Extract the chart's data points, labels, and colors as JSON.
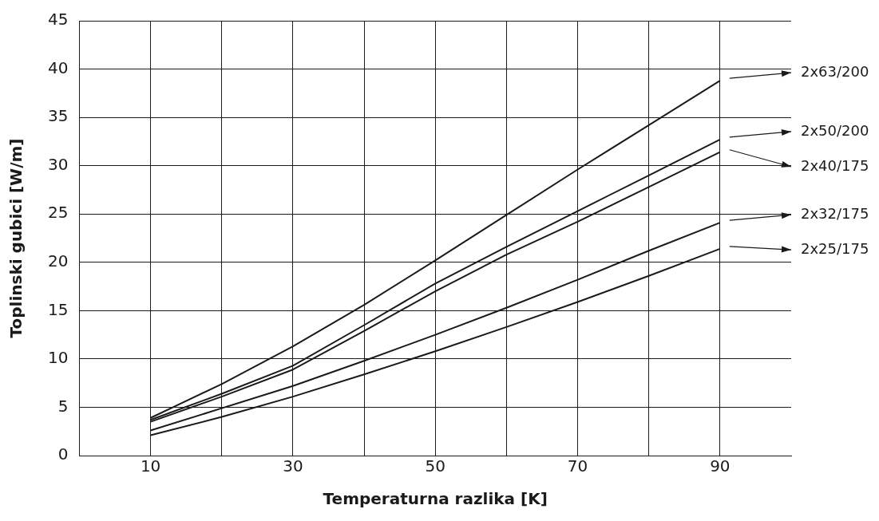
{
  "chart_data": {
    "type": "line",
    "xlabel": "Temperaturna razlika [K]",
    "ylabel": "Toplinski gubici [W/m]",
    "x": [
      10,
      20,
      30,
      40,
      50,
      60,
      70,
      80,
      90
    ],
    "xlim": [
      0,
      100
    ],
    "xticks": [
      10,
      {
        "value": 20,
        "label": null
      },
      30,
      {
        "value": 40,
        "label": null
      },
      50,
      {
        "value": 60,
        "label": null
      },
      70,
      {
        "value": 80,
        "label": null
      },
      90
    ],
    "ylim": [
      0,
      45
    ],
    "yticks": [
      0,
      5,
      10,
      15,
      20,
      25,
      30,
      35,
      40,
      45
    ],
    "grid": true,
    "legend": "right",
    "marker": "none",
    "line_style": "solid",
    "series": [
      {
        "name": "2x63/200",
        "color": "#1a1a1a",
        "values": [
          3.9,
          7.4,
          11.3,
          15.6,
          20.2,
          24.9,
          29.6,
          34.2,
          38.8
        ]
      },
      {
        "name": "2x50/200",
        "color": "#1a1a1a",
        "values": [
          3.7,
          6.4,
          9.3,
          13.5,
          17.8,
          21.6,
          25.3,
          29.0,
          32.7
        ]
      },
      {
        "name": "2x40/175",
        "color": "#1a1a1a",
        "values": [
          3.5,
          6.1,
          8.9,
          12.9,
          17.0,
          20.8,
          24.2,
          27.8,
          31.4
        ]
      },
      {
        "name": "2x32/175",
        "color": "#1a1a1a",
        "values": [
          2.6,
          4.9,
          7.2,
          9.8,
          12.5,
          15.3,
          18.2,
          21.2,
          24.1
        ]
      },
      {
        "name": "2x25/175",
        "color": "#1a1a1a",
        "values": [
          2.1,
          4.0,
          6.1,
          8.4,
          10.8,
          13.3,
          15.9,
          18.6,
          21.4
        ]
      }
    ]
  }
}
